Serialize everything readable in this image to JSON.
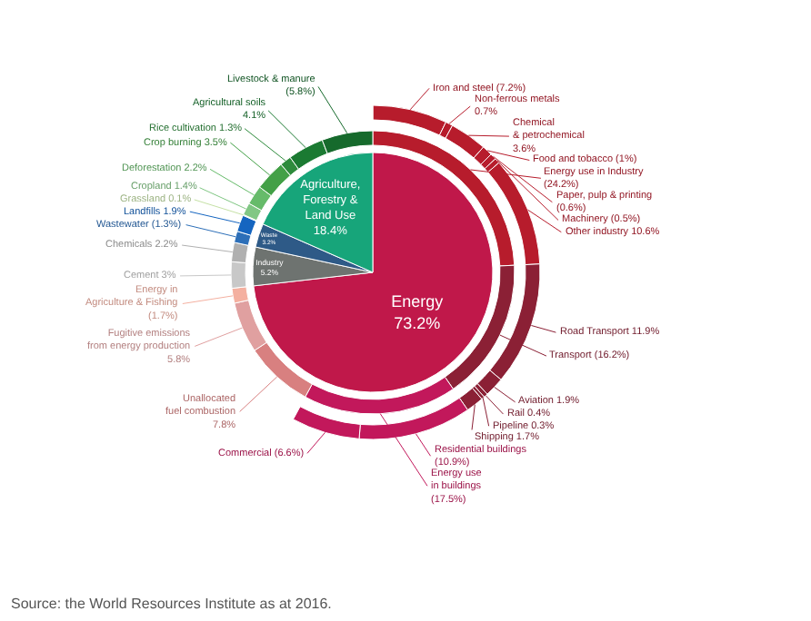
{
  "chart_data": [
    {
      "type": "pie",
      "annotations": [
        "Source: the World Resources Institute as at 2016."
      ],
      "categories": [
        "Energy",
        "Industry",
        "Waste",
        "Agriculture, Forestry & Land Use"
      ],
      "values": [
        73.2,
        5.2,
        3.2,
        18.4
      ],
      "value_labels": [
        "73.2%",
        "5.2%",
        "3.2%",
        "18.4%"
      ],
      "colors": [
        "#c0184a",
        "#6e7370",
        "#2e5a87",
        "#17a57a"
      ]
    },
    {
      "type": "donut",
      "categories": [
        "Energy use in Industry",
        "Transport",
        "Energy use in buildings",
        "Unallocated fuel combustion",
        "Fugitive emissions from energy production",
        "Energy in Agriculture & Fishing",
        "Cement",
        "Chemicals",
        "Wastewater",
        "Landfills",
        "Grassland",
        "Cropland",
        "Deforestation",
        "Crop burning",
        "Rice cultivation",
        "Agricultural soils",
        "Livestock & manure"
      ],
      "values": [
        24.2,
        16.2,
        17.5,
        7.8,
        5.8,
        1.7,
        3,
        2.2,
        1.3,
        1.9,
        0.1,
        1.4,
        2.2,
        3.5,
        1.3,
        4.1,
        5.8
      ],
      "value_labels": [
        "(24.2%)",
        "(16.2%)",
        "(17.5%)",
        "7.8%",
        "5.8%",
        "(1.7%)",
        "3%",
        "2.2%",
        "(1.3%)",
        "1.9%",
        "0.1%",
        "1.4%",
        "2.2%",
        "3.5%",
        "1.3%",
        "4.1%",
        "(5.8%)"
      ],
      "colors": [
        "#b71c2c",
        "#8b2035",
        "#c2185b",
        "#d88080",
        "#e0a0a0",
        "#f4b0a0",
        "#c8c8c8",
        "#b0b0b0",
        "#2d6fb8",
        "#1565c0",
        "#c5e1a5",
        "#81c784",
        "#66bb6a",
        "#43a047",
        "#2e8b3c",
        "#1b7a32",
        "#166a2c"
      ]
    },
    {
      "type": "donut",
      "categories": [
        "Iron and steel",
        "Non-ferrous metals",
        "Chemical & petrochemical",
        "Food and tobacco",
        "Paper, pulp & printing",
        "Machinery",
        "Other industry",
        "Road Transport",
        "Aviation",
        "Rail",
        "Pipeline",
        "Shipping",
        "Residential buildings",
        "Commercial"
      ],
      "values": [
        7.2,
        0.7,
        3.6,
        1,
        0.6,
        0.5,
        10.6,
        11.9,
        1.9,
        0.4,
        0.3,
        1.7,
        10.9,
        6.6
      ],
      "value_labels": [
        "(7.2%)",
        "0.7%",
        "3.6%",
        "(1%)",
        "(0.6%)",
        "(0.5%)",
        "10.6%",
        "11.9%",
        "1.9%",
        "0.4%",
        "0.3%",
        "1.7%",
        "(10.9%)",
        "(6.6%)"
      ],
      "colors": [
        "#b71c2c",
        "#b71c2c",
        "#b71c2c",
        "#b71c2c",
        "#b71c2c",
        "#b71c2c",
        "#b71c2c",
        "#8b2035",
        "#8b2035",
        "#8b2035",
        "#8b2035",
        "#8b2035",
        "#c2185b",
        "#c2185b"
      ]
    }
  ]
}
